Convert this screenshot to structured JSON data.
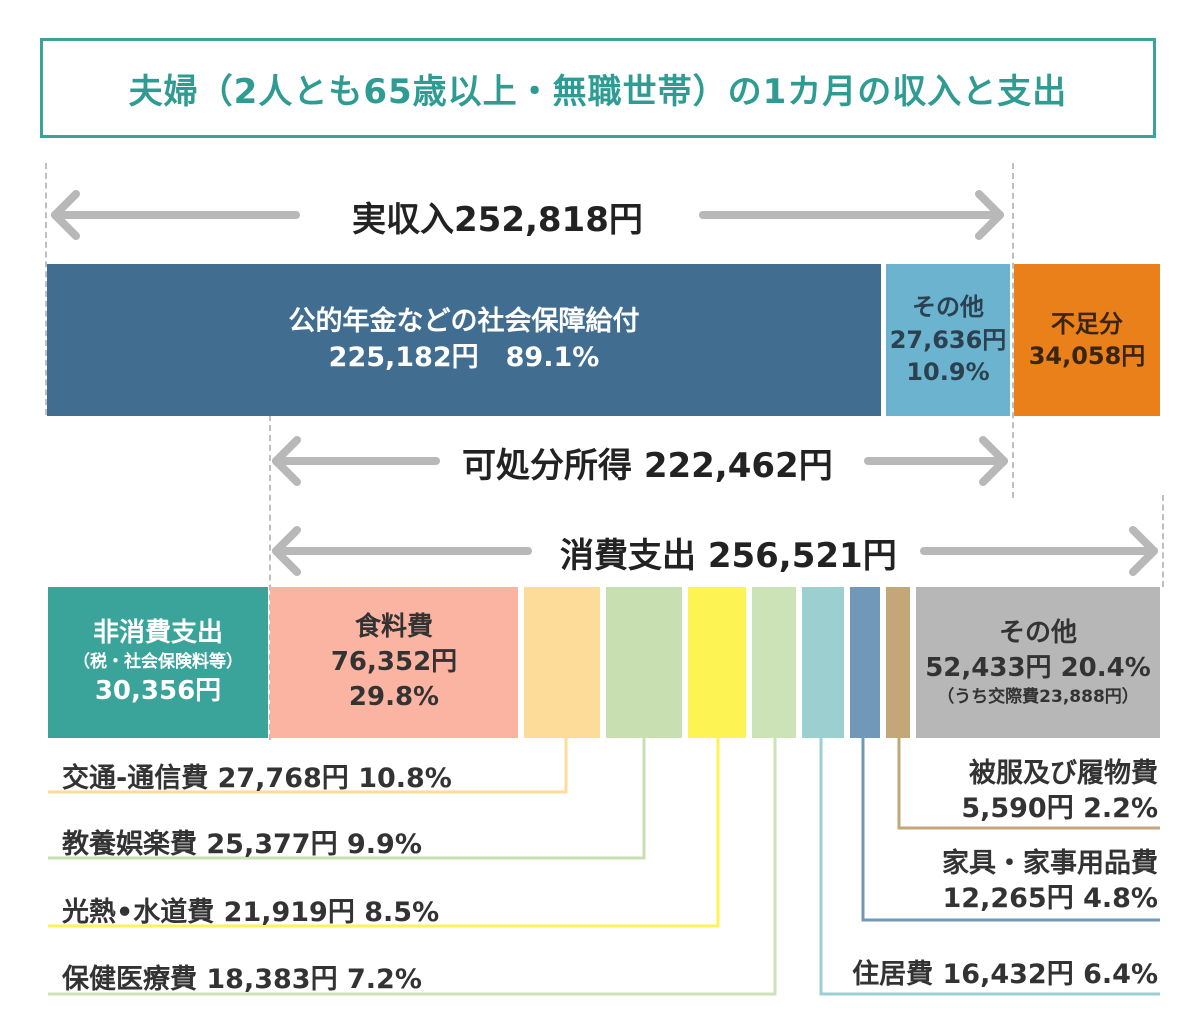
{
  "title": "夫婦（2人とも65歳以上・無職世帯）の1カ月の収入と支出",
  "income": {
    "label": "実収入252,818円",
    "pension": {
      "name": "公的年金などの社会保障給付",
      "value": "225,182円　89.1%"
    },
    "other": {
      "name": "その他",
      "value": "27,636円",
      "pct": "10.9%"
    },
    "shortfall": {
      "name": "不足分",
      "value": "34,058円"
    }
  },
  "disposable": {
    "label": "可処分所得 222,462円"
  },
  "consumption": {
    "label": "消費支出 256,521円"
  },
  "non_consumption": {
    "name": "非消費支出",
    "note": "（税・社会保険料等）",
    "value": "30,356円"
  },
  "food": {
    "name": "食料費",
    "value": "76,352円",
    "pct": "29.8%"
  },
  "other_exp": {
    "name": "その他",
    "value": "52,433円 20.4%",
    "note": "（うち交際費23,888円）"
  },
  "left_labels": {
    "transport": "交通-通信費 27,768円 10.8%",
    "education": "教養娯楽費 25,377円 9.9%",
    "utilities": "光熱•水道費 21,919円 8.5%",
    "health": "保健医療費 18,383円 7.2%"
  },
  "right_labels": {
    "clothing_name": "被服及び履物費",
    "clothing_value": "5,590円 2.2%",
    "furniture_name": "家具・家事用品費",
    "furniture_value": "12,265円 4.8%",
    "housing": "住居費 16,432円 6.4%"
  },
  "colors": {
    "teal": "#3aa39a",
    "pension": "#416d91",
    "income_other": "#6cb3cf",
    "shortfall": "#e98019",
    "food": "#fbb3a2",
    "transport": "#fddb98",
    "education": "#c8dfb2",
    "utilities": "#fdf352",
    "health": "#cce3b8",
    "housing": "#9bcfd0",
    "furniture": "#7198b8",
    "clothing": "#c4a779",
    "other_exp": "#b7b7b7",
    "arrow": "#b8b8b8"
  }
}
